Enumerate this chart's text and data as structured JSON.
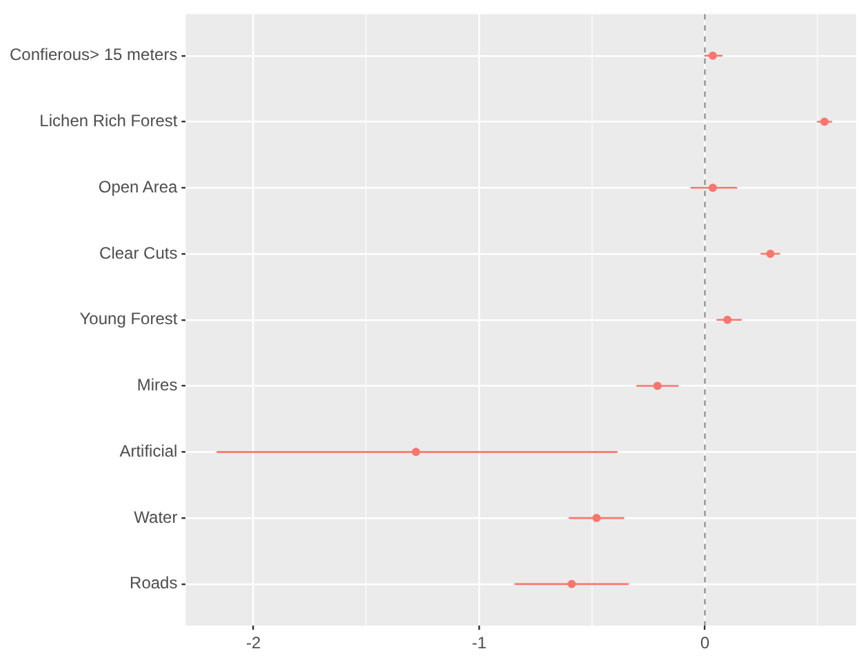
{
  "chart_data": {
    "type": "scatter",
    "orientation": "horizontal",
    "marker": "circle",
    "grid": true,
    "legend": false,
    "categories": [
      "Confierous> 15 meters",
      "Lichen Rich Forest",
      "Open Area",
      "Clear Cuts",
      "Young Forest",
      "Mires",
      "Artificial",
      "Water",
      "Roads"
    ],
    "series": [
      {
        "color": "#f8766d",
        "values": [
          0.035,
          0.53,
          0.035,
          0.29,
          0.1,
          -0.21,
          -1.28,
          -0.48,
          -0.59
        ],
        "errors": [
          [
            0,
            0.075
          ],
          [
            0.5,
            0.56
          ],
          [
            -0.06,
            0.14
          ],
          [
            0.25,
            0.33
          ],
          [
            0.055,
            0.16
          ],
          [
            -0.3,
            -0.12
          ],
          [
            -2.16,
            -0.39
          ],
          [
            -0.6,
            -0.36
          ],
          [
            -0.84,
            -0.34
          ]
        ]
      }
    ],
    "xlim": [
      -2.3,
      0.67
    ],
    "xticks": [
      -2,
      {
        "value": -1.5,
        "label": null
      },
      -1,
      {
        "value": -0.5,
        "label": null
      },
      0,
      {
        "value": 0.5,
        "label": null
      }
    ],
    "ref_lines": [
      {
        "axis": "x",
        "value": 0,
        "color": "#808080",
        "line_style": "dashed"
      }
    ]
  }
}
